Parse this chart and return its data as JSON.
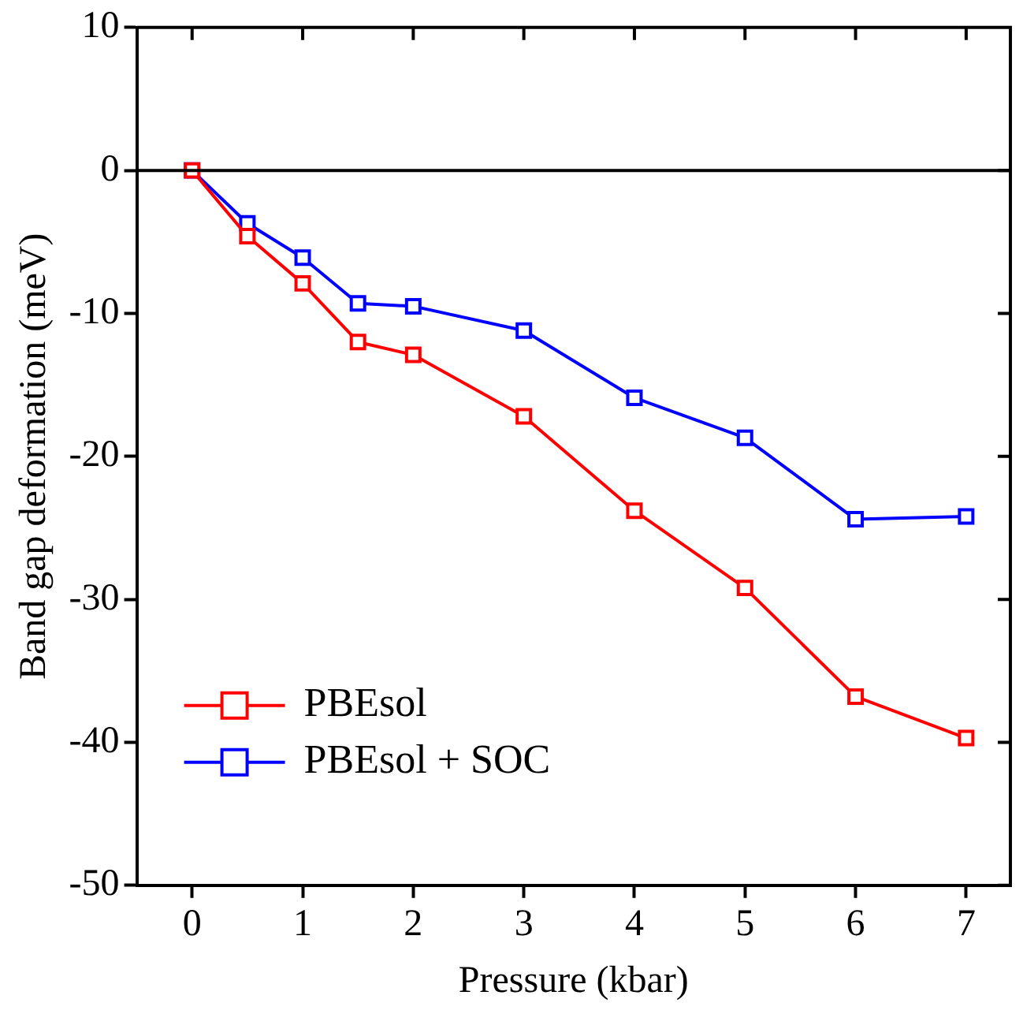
{
  "chart_data": {
    "type": "line",
    "xlabel": "Pressure (kbar)",
    "ylabel": "Band gap deformation (meV)",
    "xlim": [
      -0.5,
      7.4
    ],
    "xticks": [
      0,
      1,
      2,
      3,
      4,
      5,
      6,
      7
    ],
    "ylim": [
      -50,
      10
    ],
    "yticks": [
      -50,
      -40,
      -30,
      -20,
      -10,
      0,
      10
    ],
    "x": [
      0,
      0.5,
      1,
      1.5,
      2,
      3,
      4,
      5,
      6,
      7
    ],
    "series": [
      {
        "name": "PBEsol",
        "color": "#ff0000",
        "values": [
          0,
          -4.6,
          -7.9,
          -12.0,
          -12.9,
          -17.2,
          -23.8,
          -29.2,
          -36.8,
          -39.7
        ]
      },
      {
        "name": "PBEsol + SOC",
        "color": "#0000ff",
        "values": [
          0,
          -3.7,
          -6.1,
          -9.3,
          -9.5,
          -11.2,
          -15.9,
          -18.7,
          -24.4,
          -24.2
        ]
      }
    ],
    "ref_lines": [
      {
        "axis": "y",
        "value": 0,
        "color": "#000000"
      }
    ],
    "grid": false,
    "legend": "bottom left",
    "marker": "square",
    "line_style": "solid"
  }
}
